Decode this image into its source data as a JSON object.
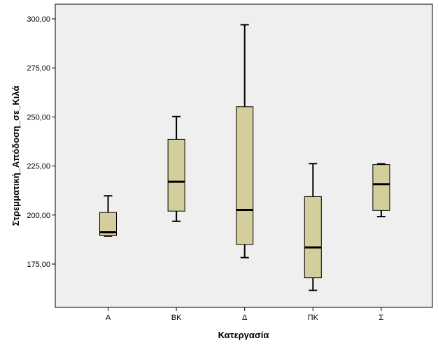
{
  "chart_data": {
    "type": "boxplot",
    "xlabel": "Κατεργασία",
    "ylabel": "Στρεμματική_Απόδοση_σε_Κιλά",
    "ylim": [
      155,
      305
    ],
    "y_ticks": [
      175,
      200,
      225,
      250,
      275,
      300
    ],
    "y_tick_labels": [
      "175,00",
      "200,00",
      "225,00",
      "250,00",
      "275,00",
      "300,00"
    ],
    "categories": [
      "Α",
      "ΒΚ",
      "Δ",
      "ΠΚ",
      "Σ"
    ],
    "boxes": [
      {
        "category": "Α",
        "min": 189.3,
        "q1": 189.5,
        "median": 191.2,
        "q3": 201.3,
        "max": 209.8
      },
      {
        "category": "ΒΚ",
        "min": 196.8,
        "q1": 202.0,
        "median": 217.0,
        "q3": 238.6,
        "max": 250.2
      },
      {
        "category": "Δ",
        "min": 178.3,
        "q1": 185.0,
        "median": 202.6,
        "q3": 255.2,
        "max": 297.0
      },
      {
        "category": "ΠΚ",
        "min": 161.6,
        "q1": 168.0,
        "median": 183.5,
        "q3": 209.4,
        "max": 226.2
      },
      {
        "category": "Σ",
        "min": 199.2,
        "q1": 202.3,
        "median": 215.7,
        "q3": 225.7,
        "max": 226.1
      }
    ],
    "grid": false,
    "colors": {
      "plot_background": "#efefef",
      "box_fill": "#d3ce9b",
      "stroke": "#000000"
    }
  }
}
